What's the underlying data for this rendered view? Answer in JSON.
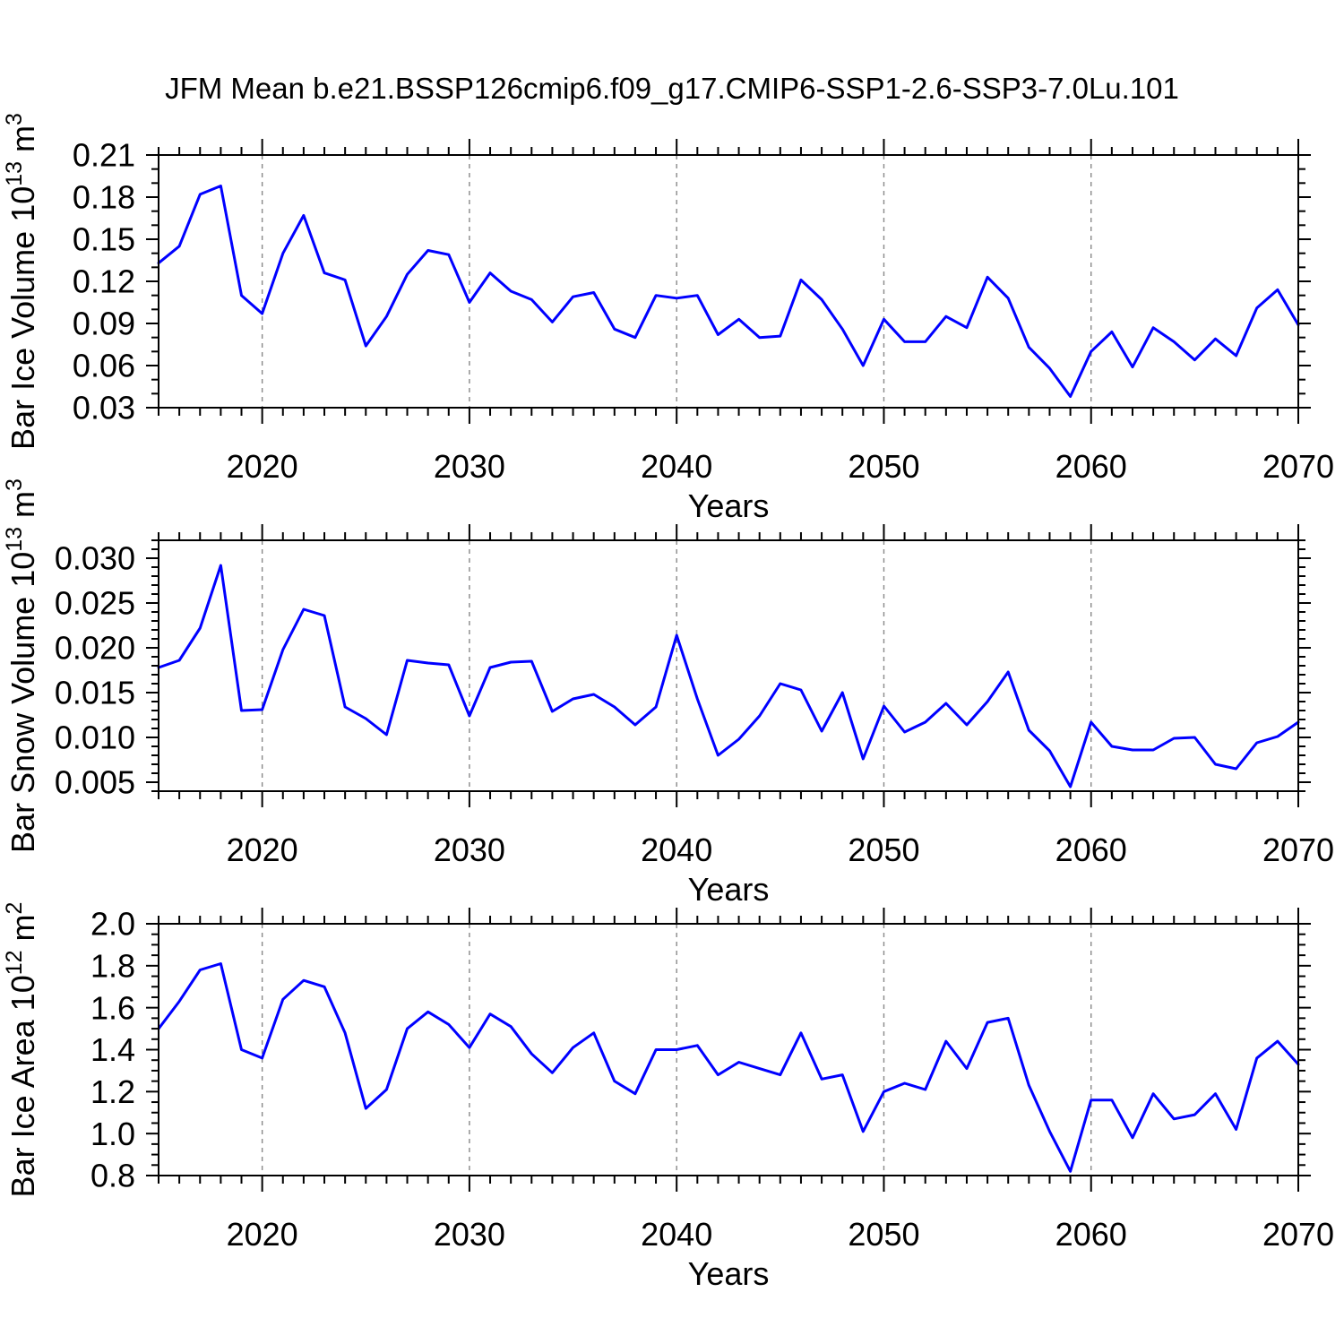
{
  "title": "JFM Mean b.e21.BSSP126cmip6.f09_g17.CMIP6-SSP1-2.6-SSP3-7.0Lu.101",
  "styles": {
    "line_color": "#0000ff",
    "axis_color": "#000000",
    "grid_color": "#888888",
    "text_color": "#000000",
    "background": "#ffffff"
  },
  "x_axis": {
    "label": "Years",
    "range": [
      2015,
      2070
    ],
    "tick_years": [
      2020,
      2030,
      2040,
      2050,
      2060,
      2070
    ],
    "tick_labels": [
      "2020",
      "2030",
      "2040",
      "2050",
      "2060",
      "2070"
    ],
    "minor_step_years": 1,
    "gridline_years": [
      2020,
      2030,
      2040,
      2050,
      2060
    ]
  },
  "years": [
    2015,
    2016,
    2017,
    2018,
    2019,
    2020,
    2021,
    2022,
    2023,
    2024,
    2025,
    2026,
    2027,
    2028,
    2029,
    2030,
    2031,
    2032,
    2033,
    2034,
    2035,
    2036,
    2037,
    2038,
    2039,
    2040,
    2041,
    2042,
    2043,
    2044,
    2045,
    2046,
    2047,
    2048,
    2049,
    2050,
    2051,
    2052,
    2053,
    2054,
    2055,
    2056,
    2057,
    2058,
    2059,
    2060,
    2061,
    2062,
    2063,
    2064,
    2065,
    2066,
    2067,
    2068,
    2069,
    2070
  ],
  "chart_data": [
    {
      "type": "line",
      "panel": "ice-volume",
      "ylabel_text": "Bar Ice Volume 10^13 m^3",
      "ylabel_parts": [
        {
          "t": "Bar Ice Volume 10"
        },
        {
          "t": "13",
          "sup": true
        },
        {
          "t": " m"
        },
        {
          "t": "3",
          "sup": true
        }
      ],
      "xlabel": "Years",
      "ylim": [
        0.03,
        0.21
      ],
      "yticks": [
        0.03,
        0.06,
        0.09,
        0.12,
        0.15,
        0.18,
        0.21
      ],
      "ytick_labels": [
        "0.03",
        "0.06",
        "0.09",
        "0.12",
        "0.15",
        "0.18",
        "0.21"
      ],
      "y_minor_step": 0.01,
      "grid": "vertical-dashed-at-decades",
      "legend": "none",
      "series": [
        {
          "name": "Bar Ice Volume",
          "values": [
            0.133,
            0.145,
            0.182,
            0.188,
            0.11,
            0.097,
            0.14,
            0.167,
            0.126,
            0.121,
            0.074,
            0.095,
            0.125,
            0.142,
            0.139,
            0.105,
            0.126,
            0.113,
            0.107,
            0.091,
            0.109,
            0.112,
            0.086,
            0.08,
            0.11,
            0.108,
            0.11,
            0.082,
            0.093,
            0.08,
            0.081,
            0.121,
            0.107,
            0.086,
            0.06,
            0.093,
            0.077,
            0.077,
            0.095,
            0.087,
            0.123,
            0.108,
            0.073,
            0.058,
            0.038,
            0.07,
            0.084,
            0.059,
            0.087,
            0.077,
            0.064,
            0.079,
            0.067,
            0.101,
            0.114,
            0.089
          ]
        }
      ]
    },
    {
      "type": "line",
      "panel": "snow-volume",
      "ylabel_text": "Bar Snow Volume 10^13 m^3",
      "ylabel_parts": [
        {
          "t": "Bar Snow Volume 10"
        },
        {
          "t": "13",
          "sup": true
        },
        {
          "t": " m"
        },
        {
          "t": "3",
          "sup": true
        }
      ],
      "xlabel": "Years",
      "ylim": [
        0.004,
        0.032
      ],
      "yticks": [
        0.005,
        0.01,
        0.015,
        0.02,
        0.025,
        0.03
      ],
      "ytick_labels": [
        "0.005",
        "0.010",
        "0.015",
        "0.020",
        "0.025",
        "0.030"
      ],
      "y_minor_step": 0.001,
      "grid": "vertical-dashed-at-decades",
      "legend": "none",
      "series": [
        {
          "name": "Bar Snow Volume",
          "values": [
            0.0178,
            0.0186,
            0.0222,
            0.0292,
            0.013,
            0.0131,
            0.0198,
            0.0243,
            0.0236,
            0.0134,
            0.0121,
            0.0103,
            0.0186,
            0.0183,
            0.0181,
            0.0124,
            0.0178,
            0.0184,
            0.0185,
            0.0129,
            0.0143,
            0.0148,
            0.0134,
            0.0114,
            0.0134,
            0.0214,
            0.0143,
            0.008,
            0.0098,
            0.0124,
            0.016,
            0.0153,
            0.0107,
            0.015,
            0.0076,
            0.0135,
            0.0106,
            0.0117,
            0.0138,
            0.0114,
            0.014,
            0.0173,
            0.0108,
            0.0085,
            0.0045,
            0.0117,
            0.009,
            0.0086,
            0.0086,
            0.0099,
            0.01,
            0.007,
            0.0065,
            0.0094,
            0.0101,
            0.0117
          ]
        }
      ]
    },
    {
      "type": "line",
      "panel": "ice-area",
      "ylabel_text": "Bar Ice Area 10^12 m^2",
      "ylabel_parts": [
        {
          "t": "Bar Ice Area 10"
        },
        {
          "t": "12",
          "sup": true
        },
        {
          "t": " m"
        },
        {
          "t": "2",
          "sup": true
        }
      ],
      "xlabel": "Years",
      "ylim": [
        0.8,
        2.0
      ],
      "yticks": [
        0.8,
        1.0,
        1.2,
        1.4,
        1.6,
        1.8,
        2.0
      ],
      "ytick_labels": [
        "0.8",
        "1.0",
        "1.2",
        "1.4",
        "1.6",
        "1.8",
        "2.0"
      ],
      "y_minor_step": 0.05,
      "grid": "vertical-dashed-at-decades",
      "legend": "none",
      "series": [
        {
          "name": "Bar Ice Area",
          "values": [
            1.5,
            1.63,
            1.78,
            1.81,
            1.4,
            1.36,
            1.64,
            1.73,
            1.7,
            1.48,
            1.12,
            1.21,
            1.5,
            1.58,
            1.52,
            1.41,
            1.57,
            1.51,
            1.38,
            1.29,
            1.41,
            1.48,
            1.25,
            1.19,
            1.4,
            1.4,
            1.42,
            1.28,
            1.34,
            1.31,
            1.28,
            1.48,
            1.26,
            1.28,
            1.01,
            1.2,
            1.24,
            1.21,
            1.44,
            1.31,
            1.53,
            1.55,
            1.23,
            1.01,
            0.82,
            1.16,
            1.16,
            0.98,
            1.19,
            1.07,
            1.09,
            1.19,
            1.02,
            1.36,
            1.44,
            1.33
          ]
        }
      ]
    }
  ]
}
